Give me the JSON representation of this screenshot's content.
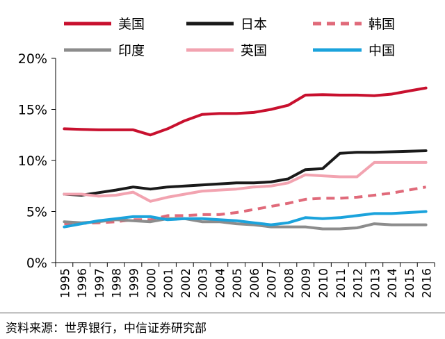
{
  "chart_data": {
    "type": "line",
    "title": "",
    "xlabel": "",
    "ylabel": "",
    "ylim": [
      0,
      20
    ],
    "y_ticks": [
      "0%",
      "5%",
      "10%",
      "15%",
      "20%"
    ],
    "x": [
      "1995",
      "1996",
      "1997",
      "1998",
      "1999",
      "2000",
      "2001",
      "2002",
      "2003",
      "2004",
      "2005",
      "2006",
      "2007",
      "2008",
      "2009",
      "2010",
      "2011",
      "2012",
      "2013",
      "2014",
      "2015",
      "2016"
    ],
    "series": [
      {
        "name": "美国",
        "color": "#C8102E",
        "dash": "solid",
        "values": [
          13.1,
          13.05,
          13.0,
          13.0,
          13.0,
          12.5,
          13.1,
          13.9,
          14.5,
          14.6,
          14.6,
          14.7,
          15.0,
          15.4,
          16.4,
          16.45,
          16.4,
          16.4,
          16.35,
          16.5,
          16.8,
          17.1
        ]
      },
      {
        "name": "日本",
        "color": "#1A1A1A",
        "dash": "solid",
        "values": [
          6.7,
          6.6,
          6.85,
          7.1,
          7.4,
          7.2,
          7.4,
          7.5,
          7.6,
          7.7,
          7.8,
          7.8,
          7.9,
          8.2,
          9.1,
          9.2,
          10.7,
          10.8,
          10.8,
          10.85,
          10.9,
          10.95
        ]
      },
      {
        "name": "韩国",
        "color": "#E06A7A",
        "dash": "dashed",
        "values": [
          3.8,
          3.85,
          3.9,
          4.0,
          4.2,
          4.2,
          4.6,
          4.6,
          4.7,
          4.7,
          4.9,
          5.2,
          5.5,
          5.8,
          6.2,
          6.3,
          6.3,
          6.4,
          6.6,
          6.8,
          7.1,
          7.4
        ]
      },
      {
        "name": "印度",
        "color": "#8C8C8C",
        "dash": "solid",
        "values": [
          4.0,
          3.9,
          4.0,
          4.2,
          4.1,
          4.0,
          4.3,
          4.3,
          4.0,
          4.0,
          3.8,
          3.7,
          3.5,
          3.5,
          3.5,
          3.3,
          3.3,
          3.4,
          3.8,
          3.7,
          3.7,
          3.7
        ]
      },
      {
        "name": "英国",
        "color": "#F2A3B0",
        "dash": "solid",
        "values": [
          6.7,
          6.7,
          6.5,
          6.6,
          6.9,
          6.0,
          6.4,
          6.7,
          7.0,
          7.1,
          7.2,
          7.4,
          7.5,
          7.8,
          8.6,
          8.5,
          8.4,
          8.4,
          9.8,
          9.8,
          9.8,
          9.8
        ]
      },
      {
        "name": "中国",
        "color": "#1BA3DC",
        "dash": "solid",
        "values": [
          3.5,
          3.8,
          4.1,
          4.3,
          4.5,
          4.5,
          4.2,
          4.3,
          4.3,
          4.2,
          4.1,
          3.9,
          3.7,
          3.9,
          4.4,
          4.3,
          4.4,
          4.6,
          4.8,
          4.8,
          4.9,
          5.0
        ]
      }
    ]
  },
  "source": "资料来源：世界银行，中信证券研究部"
}
